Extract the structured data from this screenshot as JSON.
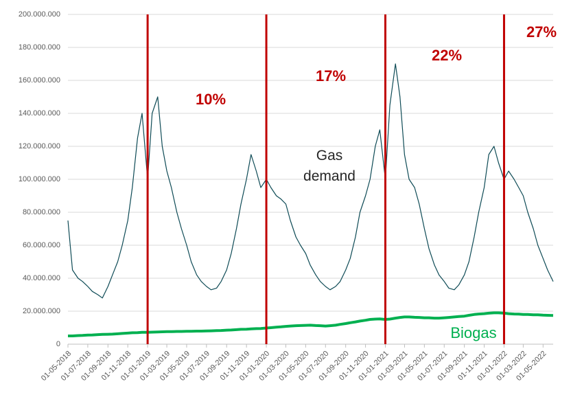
{
  "chart_data": {
    "type": "line",
    "x": [
      "01-05-2018",
      "15-05-2018",
      "01-06-2018",
      "15-06-2018",
      "01-07-2018",
      "15-07-2018",
      "01-08-2018",
      "15-08-2018",
      "01-09-2018",
      "15-09-2018",
      "01-10-2018",
      "15-10-2018",
      "01-11-2018",
      "15-11-2018",
      "01-12-2018",
      "15-12-2018",
      "01-01-2019",
      "15-01-2019",
      "01-02-2019",
      "15-02-2019",
      "01-03-2019",
      "15-03-2019",
      "01-04-2019",
      "15-04-2019",
      "01-05-2019",
      "15-05-2019",
      "01-06-2019",
      "15-06-2019",
      "01-07-2019",
      "15-07-2019",
      "01-08-2019",
      "15-08-2019",
      "01-09-2019",
      "15-09-2019",
      "01-10-2019",
      "15-10-2019",
      "01-11-2019",
      "15-11-2019",
      "01-12-2019",
      "15-12-2019",
      "01-01-2020",
      "15-01-2020",
      "01-02-2020",
      "15-02-2020",
      "01-03-2020",
      "15-03-2020",
      "01-04-2020",
      "15-04-2020",
      "01-05-2020",
      "15-05-2020",
      "01-06-2020",
      "15-06-2020",
      "01-07-2020",
      "15-07-2020",
      "01-08-2020",
      "15-08-2020",
      "01-09-2020",
      "15-09-2020",
      "01-10-2020",
      "15-10-2020",
      "01-11-2020",
      "15-11-2020",
      "01-12-2020",
      "15-12-2020",
      "01-01-2021",
      "15-01-2021",
      "01-02-2021",
      "15-02-2021",
      "01-03-2021",
      "15-03-2021",
      "01-04-2021",
      "15-04-2021",
      "01-05-2021",
      "15-05-2021",
      "01-06-2021",
      "15-06-2021",
      "01-07-2021",
      "15-07-2021",
      "01-08-2021",
      "15-08-2021",
      "01-09-2021",
      "15-09-2021",
      "01-10-2021",
      "15-10-2021",
      "01-11-2021",
      "15-11-2021",
      "01-12-2021",
      "15-12-2021",
      "01-01-2022",
      "15-01-2022",
      "01-02-2022",
      "15-02-2022",
      "01-03-2022",
      "15-03-2022",
      "01-04-2022",
      "15-04-2022",
      "01-05-2022",
      "15-05-2022",
      "01-06-2022"
    ],
    "series": [
      {
        "name": "Gas demand",
        "color": "#0d4a55",
        "values": [
          75000000,
          45000000,
          40000000,
          38000000,
          35000000,
          32000000,
          30000000,
          28000000,
          35000000,
          42000000,
          50000000,
          60000000,
          75000000,
          95000000,
          125000000,
          140000000,
          100000000,
          140000000,
          150000000,
          120000000,
          105000000,
          95000000,
          80000000,
          70000000,
          60000000,
          50000000,
          42000000,
          38000000,
          35000000,
          33000000,
          34000000,
          38000000,
          45000000,
          55000000,
          70000000,
          85000000,
          100000000,
          115000000,
          105000000,
          95000000,
          100000000,
          95000000,
          90000000,
          88000000,
          85000000,
          75000000,
          65000000,
          60000000,
          55000000,
          48000000,
          42000000,
          38000000,
          35000000,
          33000000,
          35000000,
          38000000,
          45000000,
          52000000,
          65000000,
          80000000,
          90000000,
          100000000,
          120000000,
          130000000,
          100000000,
          145000000,
          170000000,
          150000000,
          115000000,
          100000000,
          95000000,
          85000000,
          70000000,
          58000000,
          48000000,
          42000000,
          38000000,
          34000000,
          33000000,
          36000000,
          42000000,
          50000000,
          65000000,
          80000000,
          95000000,
          115000000,
          120000000,
          110000000,
          100000000,
          105000000,
          100000000,
          95000000,
          90000000,
          80000000,
          70000000,
          60000000,
          52000000,
          45000000,
          38000000
        ]
      },
      {
        "name": "Biogas",
        "color": "#00b050",
        "values": [
          5000000,
          5000000,
          5200000,
          5300000,
          5500000,
          5600000,
          5800000,
          5900000,
          6000000,
          6100000,
          6300000,
          6500000,
          6700000,
          6900000,
          7000000,
          7200000,
          7200000,
          7300000,
          7400000,
          7500000,
          7600000,
          7600000,
          7700000,
          7700000,
          7800000,
          7800000,
          7900000,
          7900000,
          8000000,
          8100000,
          8200000,
          8300000,
          8500000,
          8600000,
          8800000,
          9000000,
          9100000,
          9300000,
          9400000,
          9500000,
          9800000,
          10000000,
          10300000,
          10500000,
          10800000,
          11000000,
          11200000,
          11300000,
          11400000,
          11500000,
          11300000,
          11200000,
          11000000,
          11200000,
          11500000,
          12000000,
          12500000,
          13000000,
          13500000,
          14000000,
          14500000,
          15000000,
          15200000,
          15300000,
          15000000,
          15200000,
          15800000,
          16200000,
          16500000,
          16500000,
          16300000,
          16200000,
          16000000,
          16000000,
          15800000,
          15800000,
          16000000,
          16200000,
          16500000,
          16800000,
          17000000,
          17500000,
          18000000,
          18300000,
          18500000,
          18800000,
          19000000,
          19000000,
          18800000,
          18500000,
          18300000,
          18200000,
          18000000,
          18000000,
          17800000,
          17800000,
          17600000,
          17500000,
          17400000
        ]
      }
    ],
    "xlim": [
      "01-05-2018",
      "01-06-2022"
    ],
    "xticks": [
      "01-05-2018",
      "01-07-2018",
      "01-09-2018",
      "01-11-2018",
      "01-01-2019",
      "01-03-2019",
      "01-05-2019",
      "01-07-2019",
      "01-09-2019",
      "01-11-2019",
      "01-01-2020",
      "01-03-2020",
      "01-05-2020",
      "01-07-2020",
      "01-09-2020",
      "01-11-2020",
      "01-01-2021",
      "01-03-2021",
      "01-05-2021",
      "01-07-2021",
      "01-09-2021",
      "01-11-2021",
      "01-01-2022",
      "01-03-2022",
      "01-05-2022"
    ],
    "ylim": [
      0,
      200000000
    ],
    "yticks": [
      0,
      {
        "value": 20000000,
        "label": "20.000.000"
      },
      {
        "value": 40000000,
        "label": "40.000.000"
      },
      {
        "value": 60000000,
        "label": "60.000.000"
      },
      {
        "value": 80000000,
        "label": "80.000.000"
      },
      {
        "value": 100000000,
        "label": "100.000.000"
      },
      {
        "value": 120000000,
        "label": "120.000.000"
      },
      {
        "value": 140000000,
        "label": "140.000.000"
      },
      {
        "value": 160000000,
        "label": "160.000.000"
      },
      {
        "value": 180000000,
        "label": "180.000.000"
      },
      {
        "value": 200000000,
        "label": "200.000.000"
      }
    ],
    "grid": true,
    "vlines": [
      "01-01-2019",
      "01-01-2020",
      "01-01-2021",
      "01-01-2022"
    ],
    "vline_color": "#c00000",
    "annotations": [
      "10%",
      "17%",
      "22%",
      "27%"
    ]
  }
}
